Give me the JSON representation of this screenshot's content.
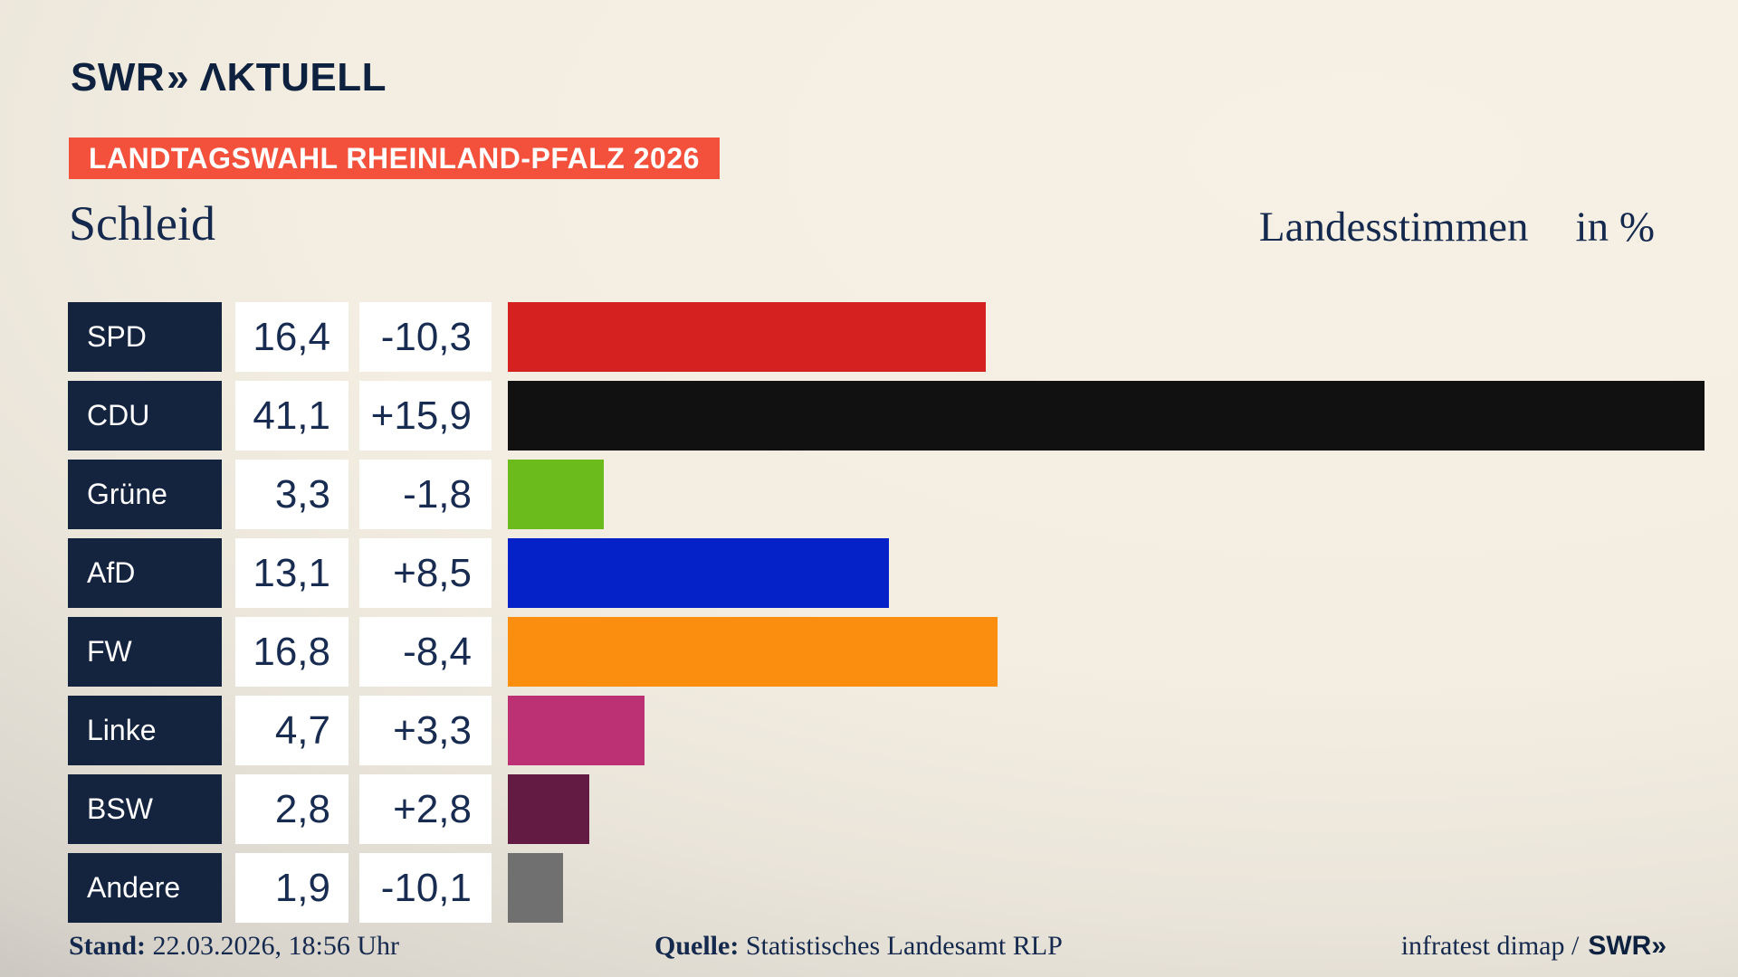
{
  "header": {
    "logo_swr": "SWR",
    "logo_chevrons": "»",
    "logo_aktuell": "ΛKTUELL",
    "banner": "LANDTAGSWAHL RHEINLAND-PFALZ 2026"
  },
  "titles": {
    "municipality": "Schleid",
    "metric": "Landesstimmen",
    "unit": "in %"
  },
  "chart_data": {
    "type": "bar",
    "orientation": "horizontal",
    "title": "Schleid",
    "subtitle": "Landesstimmen in %",
    "unit": "%",
    "categories": [
      "SPD",
      "CDU",
      "Grüne",
      "AfD",
      "FW",
      "Linke",
      "BSW",
      "Andere"
    ],
    "values": [
      16.4,
      41.1,
      3.3,
      13.1,
      16.8,
      4.7,
      2.8,
      1.9
    ],
    "changes": [
      -10.3,
      15.9,
      -1.8,
      8.5,
      -8.4,
      3.3,
      2.8,
      -10.1
    ],
    "value_labels": [
      "16,4",
      "41,1",
      "3,3",
      "13,1",
      "16,8",
      "4,7",
      "2,8",
      "1,9"
    ],
    "change_labels": [
      "-10,3",
      "+15,9",
      "-1,8",
      "+8,5",
      "-8,4",
      "+3,3",
      "+2,8",
      "-10,1"
    ],
    "bar_colors": [
      "#d52221",
      "#111111",
      "#6cbb1c",
      "#0522c8",
      "#fb8d0f",
      "#bc3174",
      "#641b43",
      "#717070"
    ],
    "xlim": [
      0,
      42.2
    ],
    "grid": "off",
    "legend": "none"
  },
  "style_colors": {
    "background_cream": "#f4eee2",
    "background_gray_corner": "#b1afac",
    "banner_red": "#f4513c",
    "label_box_navy": "#14243f",
    "text_navy": "#14294d",
    "value_text_navy": "#182b50",
    "logo_navy": "#0e2240",
    "cell_white": "#ffffff"
  },
  "footer": {
    "stand_label": "Stand:",
    "stand_value": "22.03.2026, 18:56 Uhr",
    "quelle_label": "Quelle:",
    "quelle_value": "Statistisches Landesamt RLP",
    "credit_text": "infratest dimap /",
    "credit_logo_swr": "SWR",
    "credit_logo_chevrons": "»"
  }
}
